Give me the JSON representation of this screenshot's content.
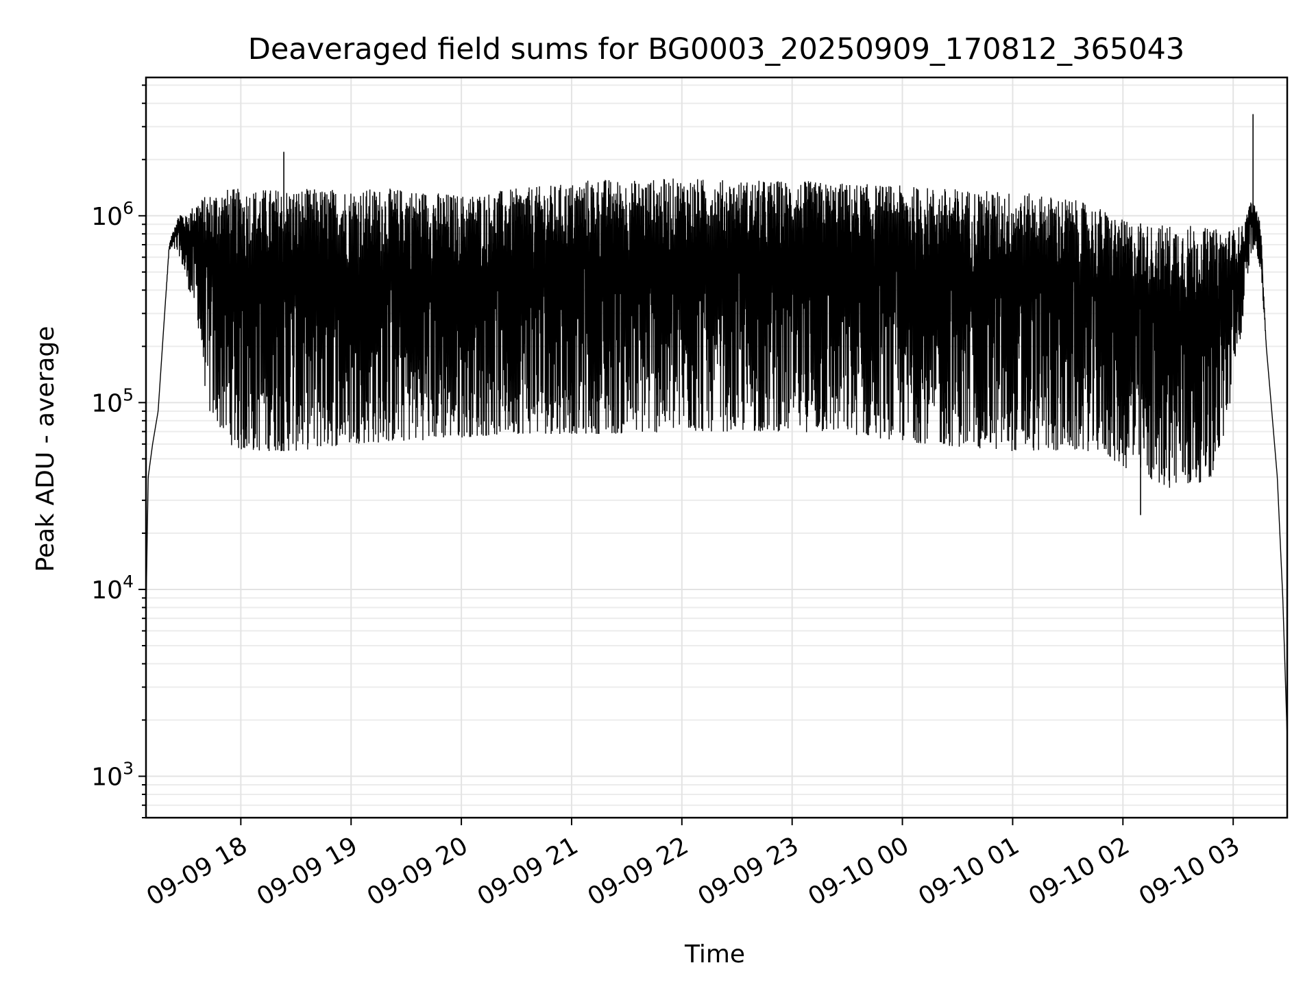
{
  "chart_data": {
    "type": "line",
    "title": "Deaveraged field sums for BG0003_20250909_170812_365043",
    "xlabel": "Time",
    "ylabel": "Peak ADU - average",
    "yscale": "log",
    "ylim": [
      600,
      5500000
    ],
    "xlim_hours": [
      17.14,
      27.49
    ],
    "grid": true,
    "legend": "none",
    "line_color": "#000000",
    "x_ticks": [
      {
        "hour": 18,
        "label": "09-09 18"
      },
      {
        "hour": 19,
        "label": "09-09 19"
      },
      {
        "hour": 20,
        "label": "09-09 20"
      },
      {
        "hour": 21,
        "label": "09-09 21"
      },
      {
        "hour": 22,
        "label": "09-09 22"
      },
      {
        "hour": 23,
        "label": "09-09 23"
      },
      {
        "hour": 24,
        "label": "09-10 00"
      },
      {
        "hour": 25,
        "label": "09-10 01"
      },
      {
        "hour": 26,
        "label": "09-10 02"
      },
      {
        "hour": 27,
        "label": "09-10 03"
      }
    ],
    "y_ticks": [
      {
        "value": 1000,
        "base": "10",
        "exp": "3"
      },
      {
        "value": 10000,
        "base": "10",
        "exp": "4"
      },
      {
        "value": 100000,
        "base": "10",
        "exp": "5"
      },
      {
        "value": 1000000,
        "base": "10",
        "exp": "6"
      }
    ],
    "series": [
      {
        "name": "Peak ADU - average",
        "envelope_hours": [
          17.14,
          17.16,
          17.2,
          17.25,
          17.3,
          17.35,
          17.4,
          17.45,
          17.5,
          17.6,
          17.7,
          17.8,
          17.9,
          18.0,
          18.5,
          19.0,
          19.5,
          20.0,
          20.5,
          21.0,
          21.2,
          21.5,
          22.0,
          22.5,
          23.0,
          23.5,
          24.0,
          24.5,
          25.0,
          25.5,
          25.8,
          26.0,
          26.2,
          26.4,
          26.6,
          26.8,
          26.9,
          27.0,
          27.1,
          27.15,
          27.2,
          27.25,
          27.3,
          27.35,
          27.4,
          27.45,
          27.49
        ],
        "envelope_upper": [
          7600,
          40000,
          60000,
          90000,
          250000,
          700000,
          900000,
          1050000,
          1000000,
          1200000,
          1300000,
          1400000,
          1400000,
          1400000,
          1400000,
          1400000,
          1400000,
          1300000,
          1400000,
          1500000,
          1600000,
          1550000,
          1600000,
          1550000,
          1550000,
          1500000,
          1450000,
          1400000,
          1350000,
          1250000,
          1100000,
          950000,
          900000,
          900000,
          900000,
          850000,
          850000,
          850000,
          900000,
          1200000,
          1150000,
          900000,
          200000,
          90000,
          40000,
          9000,
          1600
        ],
        "envelope_lower": [
          7600,
          40000,
          60000,
          90000,
          250000,
          650000,
          650000,
          600000,
          450000,
          300000,
          90000,
          75000,
          60000,
          55000,
          55000,
          60000,
          62000,
          65000,
          68000,
          68000,
          68000,
          68000,
          70000,
          70000,
          70000,
          68000,
          62000,
          58000,
          55000,
          55000,
          55000,
          45000,
          40000,
          35000,
          35000,
          40000,
          60000,
          120000,
          300000,
          600000,
          700000,
          500000,
          200000,
          90000,
          40000,
          9000,
          1600
        ],
        "spikes": [
          {
            "hour": 18.39,
            "value": 2200000
          },
          {
            "hour": 27.18,
            "value": 3500000
          },
          {
            "hour": 26.16,
            "value": 25000
          }
        ],
        "end_points": [
          {
            "hour": 17.14,
            "value": 7600
          },
          {
            "hour": 27.49,
            "value": 1600
          }
        ]
      }
    ]
  }
}
